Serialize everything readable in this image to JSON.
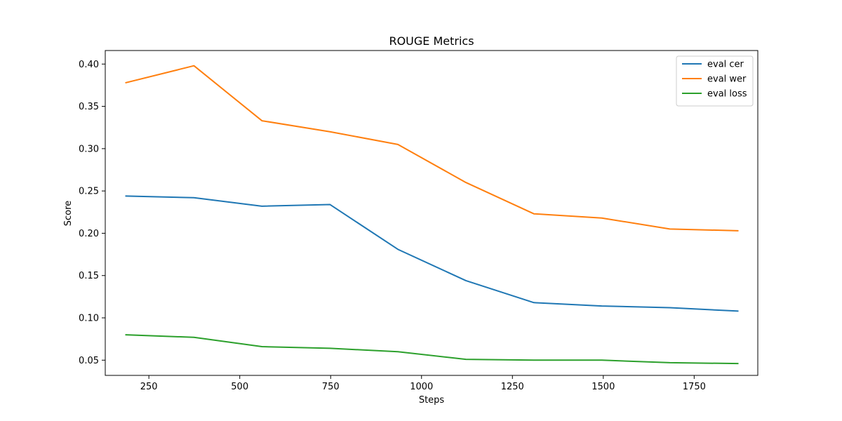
{
  "chart_data": {
    "type": "line",
    "title": "ROUGE Metrics",
    "xlabel": "Steps",
    "ylabel": "Score",
    "xlim": [
      130,
      1925
    ],
    "ylim": [
      0.032,
      0.416
    ],
    "x_ticks": [
      250,
      500,
      750,
      1000,
      1250,
      1500,
      1750
    ],
    "y_ticks": [
      0.05,
      0.1,
      0.15,
      0.2,
      0.25,
      0.3,
      0.35,
      0.4
    ],
    "x_tick_labels": [
      "250",
      "500",
      "750",
      "1000",
      "1250",
      "1500",
      "1750"
    ],
    "y_tick_labels": [
      "0.05",
      "0.10",
      "0.15",
      "0.20",
      "0.25",
      "0.30",
      "0.35",
      "0.40"
    ],
    "grid": false,
    "legend_position": "top-right",
    "x": [
      187,
      374,
      561,
      748,
      935,
      1122,
      1309,
      1496,
      1683,
      1870
    ],
    "series": [
      {
        "name": "eval cer",
        "color": "#1f77b4",
        "values": [
          0.244,
          0.242,
          0.232,
          0.234,
          0.181,
          0.144,
          0.118,
          0.114,
          0.112,
          0.108
        ]
      },
      {
        "name": "eval wer",
        "color": "#ff7f0e",
        "values": [
          0.378,
          0.398,
          0.333,
          0.32,
          0.305,
          0.26,
          0.223,
          0.218,
          0.205,
          0.203
        ]
      },
      {
        "name": "eval loss",
        "color": "#2ca02c",
        "values": [
          0.08,
          0.077,
          0.066,
          0.064,
          0.06,
          0.051,
          0.05,
          0.05,
          0.047,
          0.046
        ]
      }
    ]
  }
}
